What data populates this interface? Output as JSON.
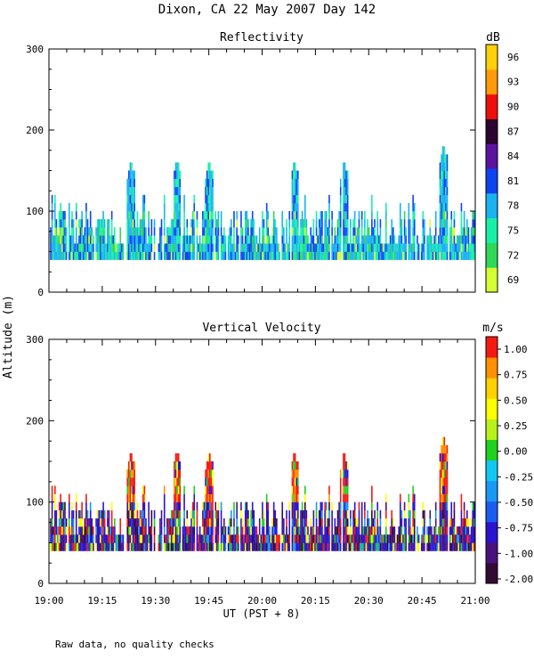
{
  "title": "Dixon, CA 22 May 2007  Day 142",
  "footnote": "Raw data, no quality checks",
  "colors": {
    "refl_scale": [
      "#d4ff33",
      "#2fd957",
      "#18f0a8",
      "#19b3f0",
      "#0d44f2",
      "#5b14a0",
      "#2a062e",
      "#ee0f0c",
      "#ff9a08",
      "#ffcf0a"
    ],
    "vel_scale": [
      "#330a33",
      "#4a137c",
      "#2a14d0",
      "#1b5cf2",
      "#1799f4",
      "#11c8f2",
      "#1ed11c",
      "#b9f21b",
      "#ffff00",
      "#ffd100",
      "#ff9000",
      "#f41a12"
    ]
  },
  "chart_data": [
    {
      "type": "heatmap",
      "name": "reflectivity",
      "title": "Reflectivity",
      "ylabel": "Altitude (m)",
      "xlabel": "UT  (PST + 8)",
      "xlim": [
        "19:00",
        "21:00"
      ],
      "ylim": [
        0,
        300
      ],
      "x_ticks": [
        "19:00",
        "19:15",
        "19:30",
        "19:45",
        "20:00",
        "20:15",
        "20:30",
        "20:45",
        "21:00"
      ],
      "y_ticks": [
        0,
        100,
        200,
        300
      ],
      "colorbar": {
        "unit": "dB",
        "ticks": [
          69,
          72,
          75,
          78,
          81,
          84,
          87,
          90,
          93,
          96
        ],
        "range": [
          67.5,
          97.5
        ]
      },
      "data_base_altitude_m": 40,
      "typical_top_altitude_m": [
        60,
        100
      ],
      "max_top_altitude_m": 180,
      "tallest_returns": [
        {
          "time": "19:23",
          "top_m": 160
        },
        {
          "time": "19:36",
          "top_m": 160
        },
        {
          "time": "19:45",
          "top_m": 160
        },
        {
          "time": "20:09",
          "top_m": 160
        },
        {
          "time": "20:23",
          "top_m": 160
        },
        {
          "time": "20:51",
          "top_m": 180
        }
      ]
    },
    {
      "type": "heatmap",
      "name": "vertical-velocity",
      "title": "Vertical Velocity",
      "ylabel": "Altitude (m)",
      "xlabel": "UT  (PST + 8)",
      "xlim": [
        "19:00",
        "21:00"
      ],
      "ylim": [
        0,
        300
      ],
      "x_ticks": [
        "19:00",
        "19:15",
        "19:30",
        "19:45",
        "20:00",
        "20:15",
        "20:30",
        "20:45",
        "21:00"
      ],
      "y_ticks": [
        0,
        100,
        200,
        300
      ],
      "colorbar": {
        "unit": "m/s",
        "ticks": [
          "1.00",
          "0.75",
          "0.50",
          "0.25",
          "0.00",
          "-0.25",
          "-0.50",
          "-0.75",
          "-1.00",
          "-2.00"
        ],
        "range": [
          -2.0,
          1.25
        ]
      },
      "data_base_altitude_m": 40,
      "max_top_altitude_m": 180
    }
  ]
}
